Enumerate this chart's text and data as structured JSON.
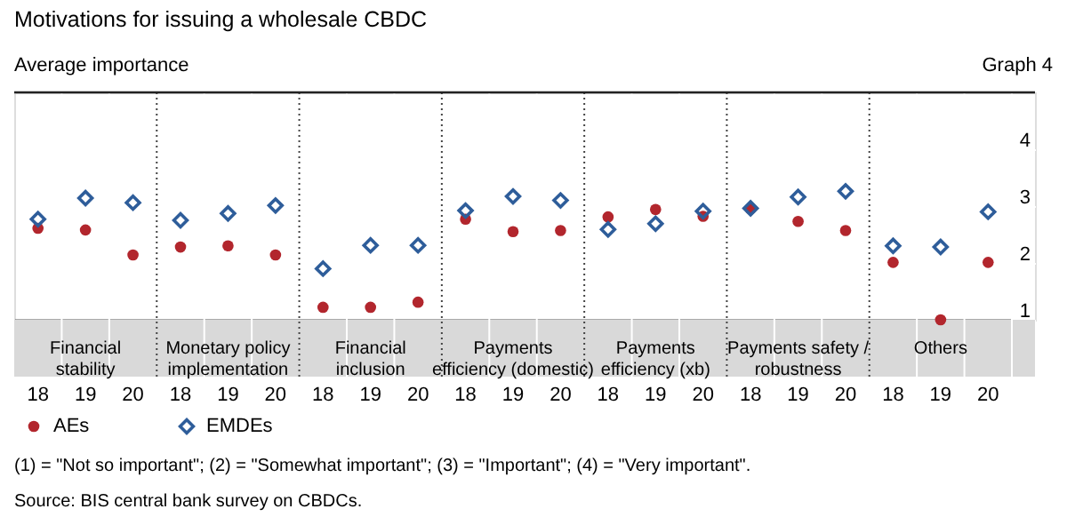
{
  "chart_data": {
    "type": "scatter",
    "title": "Motivations for issuing a wholesale CBDC",
    "subtitle": "Average importance",
    "categories": [
      "18",
      "19",
      "20",
      "18",
      "19",
      "20",
      "18",
      "19",
      "20",
      "18",
      "19",
      "20",
      "18",
      "19",
      "20",
      "18",
      "19",
      "20",
      "18",
      "19",
      "20"
    ],
    "series": [
      {
        "name": "AEs",
        "color": "#b2262d",
        "marker": "circle",
        "values": [
          2.61,
          2.58,
          2.14,
          2.28,
          2.3,
          2.14,
          1.22,
          1.22,
          1.31,
          2.77,
          2.55,
          2.57,
          2.81,
          2.94,
          2.82,
          2.95,
          2.73,
          2.57,
          2.01,
          1.0,
          2.01
        ]
      },
      {
        "name": "EMDEs",
        "color": "#2e5d9a",
        "marker": "diamond",
        "values": [
          2.77,
          3.14,
          3.06,
          2.75,
          2.87,
          3.01,
          1.9,
          2.31,
          2.31,
          2.92,
          3.17,
          3.1,
          2.59,
          2.69,
          2.91,
          2.96,
          3.16,
          3.26,
          2.3,
          2.28,
          2.9
        ]
      }
    ],
    "ylim": [
      1,
      5
    ],
    "yticks": [
      1,
      2,
      3,
      4
    ],
    "grid": true,
    "legend": "bottom left",
    "annotations": [
      "Graph 4",
      "(1) = \"Not so important\"; (2) = \"Somewhat important\"; (3) = \"Important\"; (4) = \"Very important\".",
      "Source: BIS central bank survey on CBDCs.",
      "Financial\nstability",
      "Monetary policy\nimplementation",
      "Financial\ninclusion",
      "Payments\nefficiency (domestic)",
      "Payments\nefficiency (xb)",
      "Payments safety /\nrobustness",
      "Others"
    ]
  }
}
